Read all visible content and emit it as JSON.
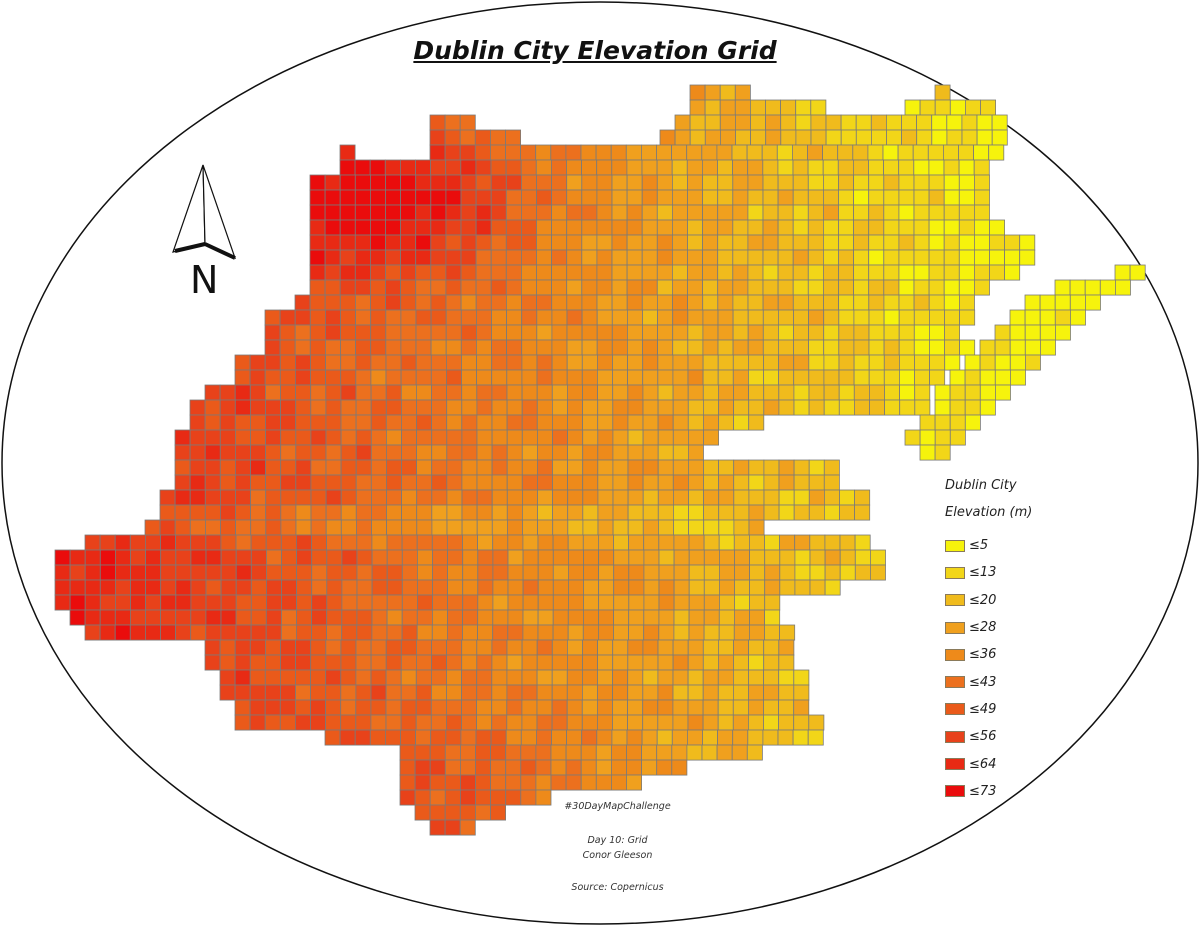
{
  "title": "Dublin City Elevation Grid",
  "north_label": "N",
  "legend": {
    "title_line1": "Dublin City",
    "title_line2": "Elevation (m)",
    "classes": [
      {
        "label": "≤5",
        "color": "#f6f30c"
      },
      {
        "label": "≤13",
        "color": "#f2d618"
      },
      {
        "label": "≤20",
        "color": "#f0bb1c"
      },
      {
        "label": "≤28",
        "color": "#f0a01e"
      },
      {
        "label": "≤36",
        "color": "#ee8a1a"
      },
      {
        "label": "≤43",
        "color": "#ec701e"
      },
      {
        "label": "≤49",
        "color": "#ea5a1a"
      },
      {
        "label": "≤56",
        "color": "#e8421a"
      },
      {
        "label": "≤64",
        "color": "#e82a14"
      },
      {
        "label": "≤73",
        "color": "#ea0c0c"
      }
    ],
    "thresholds": [
      5,
      13,
      20,
      28,
      36,
      43,
      49,
      56,
      64,
      73
    ]
  },
  "credits": {
    "hashtag": "#30DayMapChallenge",
    "day": "Day 10: Grid",
    "author": "Conor Gleeson",
    "source": "Source: Copernicus"
  }
}
